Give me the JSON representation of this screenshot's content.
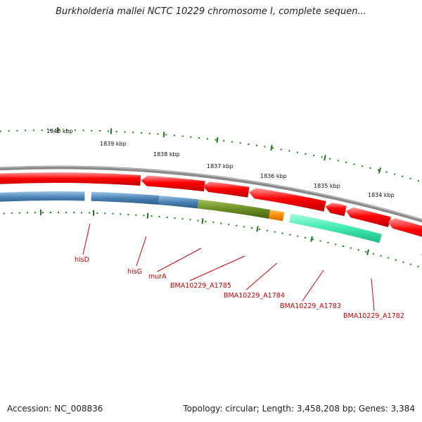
{
  "title": "Burkholderia mallei NCTC 10229 chromosome I, complete sequen...",
  "accession": "Accession: NC_008836",
  "topology": "Topology: circular; Length: 3,458,208 bp; Genes: 3,384",
  "kbp_labels": [
    "1840 kbp",
    "1839 kbp",
    "1838 kbp",
    "1837 kbp",
    "1836 kbp",
    "1835 kbp",
    "1834 kbp"
  ],
  "gene_labels": [
    "hisD",
    "hisG",
    "murA",
    "BMA10229_A1785",
    "BMA10229_A1784",
    "BMA10229_A1783",
    "BMA10229_A1782"
  ],
  "colors": {
    "backbone": "#8a8a8a",
    "cds_red": "#ff0000",
    "tick_green": "#1a7a1a",
    "label_red": "#cc0000",
    "feature_steelblue": "#4a82b4",
    "feature_olive": "#6b8e23",
    "feature_orange": "#ff8c00",
    "feature_aquamarine": "#40e8b0",
    "feature_silver": "#b8b8b8",
    "feature_navy": "#000080"
  }
}
